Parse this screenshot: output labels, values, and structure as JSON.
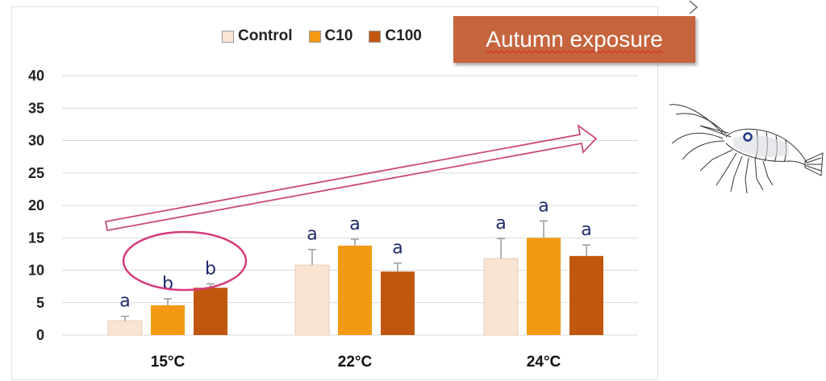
{
  "chart_data": {
    "type": "bar",
    "title": "Autumn exposure",
    "categories": [
      "15°C",
      "22°C",
      "24°C"
    ],
    "ylim": [
      0,
      40
    ],
    "yticks": [
      0,
      5,
      10,
      15,
      20,
      25,
      30,
      35,
      40
    ],
    "grid": true,
    "legend_position": "top",
    "series": [
      {
        "name": "Control",
        "color": "#fbe3d4",
        "values": [
          2.2,
          10.8,
          11.8
        ],
        "errors": [
          0.7,
          2.4,
          3.1
        ],
        "letters": [
          "a",
          "a",
          "a"
        ]
      },
      {
        "name": "C10",
        "color": "#f39a14",
        "values": [
          4.6,
          13.8,
          15.0
        ],
        "errors": [
          1.0,
          1.0,
          2.6
        ],
        "letters": [
          "b",
          "a",
          "a"
        ]
      },
      {
        "name": "C100",
        "color": "#c1570f",
        "values": [
          7.3,
          9.8,
          12.2
        ],
        "errors": [
          0.6,
          1.3,
          1.7
        ],
        "letters": [
          "b",
          "a",
          "a"
        ]
      }
    ],
    "annotations": {
      "ellipse_color": "#d63a7b",
      "trend_arrow_color": "#c94a7a"
    }
  },
  "icons": {
    "shrimp": "shrimp-illustration",
    "corner": "chevron-mark-icon"
  }
}
